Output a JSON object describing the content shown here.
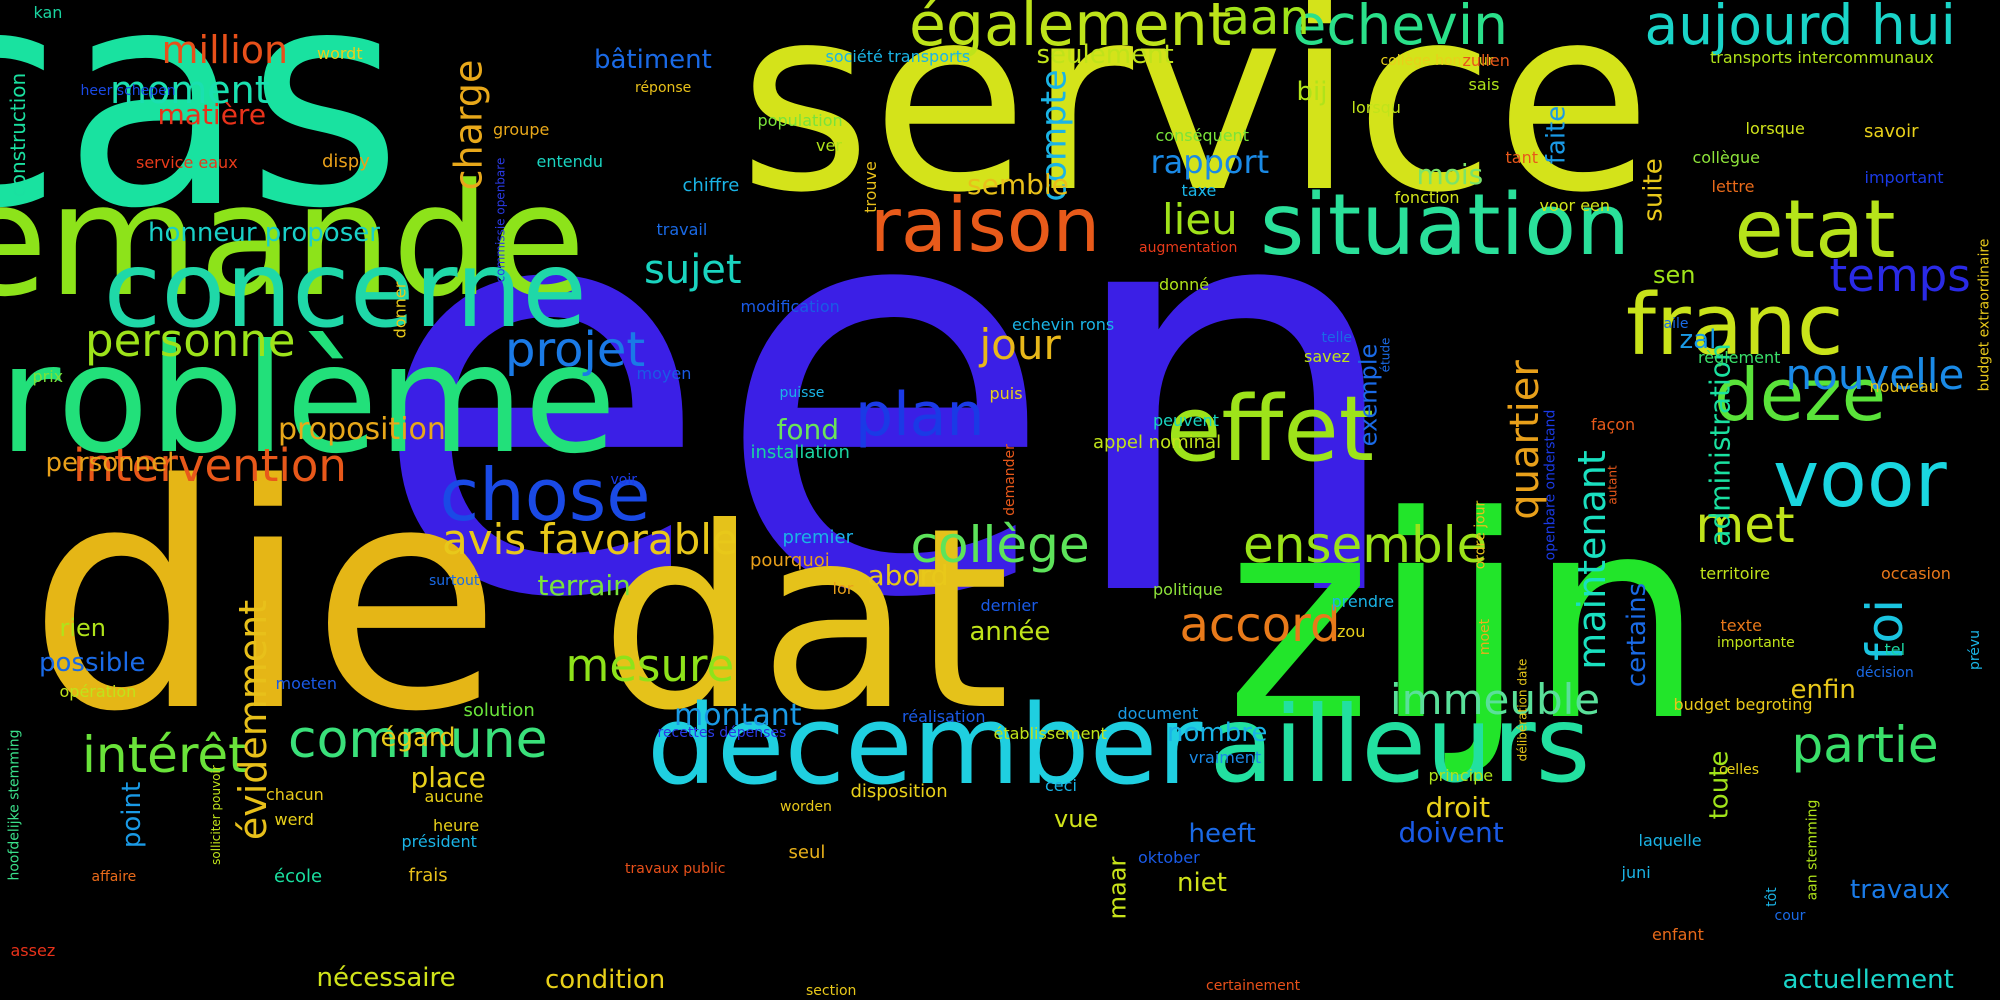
{
  "words": [
    {
      "text": "een",
      "color": "#3b1fe6"
    },
    {
      "text": "cas",
      "color": "#19e2a0"
    },
    {
      "text": "service",
      "color": "#d4e31a"
    },
    {
      "text": "die",
      "color": "#e5b616"
    },
    {
      "text": "dat",
      "color": "#e5c21a"
    },
    {
      "text": "zijn",
      "color": "#22e52a"
    },
    {
      "text": "demande",
      "color": "#8de31a"
    },
    {
      "text": "problème",
      "color": "#22e07a"
    },
    {
      "text": "concerne",
      "color": "#1fd8a8"
    },
    {
      "text": "december",
      "color": "#1fcfe0"
    },
    {
      "text": "ailleurs",
      "color": "#22e0a0"
    },
    {
      "text": "situation",
      "color": "#2ae09a"
    },
    {
      "text": "effet",
      "color": "#9ee31a"
    },
    {
      "text": "raison",
      "color": "#e85a1a"
    },
    {
      "text": "franc",
      "color": "#c9e31a"
    },
    {
      "text": "etat",
      "color": "#b6e31a"
    },
    {
      "text": "voor",
      "color": "#1ad6e0"
    },
    {
      "text": "deze",
      "color": "#5ae33a"
    },
    {
      "text": "chose",
      "color": "#1a4ae6"
    },
    {
      "text": "également",
      "color": "#bde31a"
    },
    {
      "text": "echevin",
      "color": "#2ae08a"
    },
    {
      "text": "aujourd hui",
      "color": "#1ad4c8"
    },
    {
      "text": "aan",
      "color": "#a0e31a"
    },
    {
      "text": "million",
      "color": "#e8501a"
    },
    {
      "text": "moment",
      "color": "#1ae0b0"
    },
    {
      "text": "matière",
      "color": "#e8321a"
    },
    {
      "text": "intervention",
      "color": "#e8581a"
    },
    {
      "text": "personne",
      "color": "#9de31a"
    },
    {
      "text": "projet",
      "color": "#1a7ae6"
    },
    {
      "text": "plan",
      "color": "#1a3ae6"
    },
    {
      "text": "collège",
      "color": "#5de35a"
    },
    {
      "text": "ensemble",
      "color": "#9be31a"
    },
    {
      "text": "temps",
      "color": "#2a2ae6"
    },
    {
      "text": "nouvelle",
      "color": "#1a8ae6"
    },
    {
      "text": "partie",
      "color": "#3ae06a"
    },
    {
      "text": "commune",
      "color": "#3ae07a"
    },
    {
      "text": "intérêt",
      "color": "#6ae33a"
    },
    {
      "text": "avis favorable",
      "color": "#e8c81a"
    },
    {
      "text": "mesure",
      "color": "#8ee31a"
    },
    {
      "text": "immeuble",
      "color": "#5ae09a"
    },
    {
      "text": "accord",
      "color": "#e87a1a"
    },
    {
      "text": "met",
      "color": "#c0e31a"
    },
    {
      "text": "foi",
      "color": "#1ac4e0"
    },
    {
      "text": "maintenant",
      "color": "#1ae0c0"
    },
    {
      "text": "quartier",
      "color": "#e8a01a"
    },
    {
      "text": "compte",
      "color": "#1ab4e6"
    },
    {
      "text": "charge",
      "color": "#e8a81a"
    },
    {
      "text": "sujet",
      "color": "#1ad4c0"
    },
    {
      "text": "jour",
      "color": "#e8b81a"
    },
    {
      "text": "lieu",
      "color": "#a0e31a"
    },
    {
      "text": "rapport",
      "color": "#1a8ae6"
    },
    {
      "text": "bâtiment",
      "color": "#1a6ae6"
    },
    {
      "text": "seulement",
      "color": "#c0e31a"
    },
    {
      "text": "honneur proposer",
      "color": "#1ad0c8"
    },
    {
      "text": "proposition",
      "color": "#e8a81a"
    },
    {
      "text": "personnel",
      "color": "#e8a01a"
    },
    {
      "text": "rien",
      "color": "#b0e31a"
    },
    {
      "text": "possible",
      "color": "#1a6ae6"
    },
    {
      "text": "évidemment",
      "color": "#e8c01a"
    },
    {
      "text": "montant",
      "color": "#1a9ae6"
    },
    {
      "text": "terrain",
      "color": "#7ae33a"
    },
    {
      "text": "abord",
      "color": "#e8c81a"
    },
    {
      "text": "fond",
      "color": "#6ae35a"
    },
    {
      "text": "année",
      "color": "#c0e31a"
    },
    {
      "text": "semble",
      "color": "#e8c01a"
    },
    {
      "text": "mois",
      "color": "#7ae36a"
    },
    {
      "text": "bij",
      "color": "#b0e31a"
    },
    {
      "text": "sen",
      "color": "#a0e31a"
    },
    {
      "text": "zal",
      "color": "#1a9ae6"
    },
    {
      "text": "administration",
      "color": "#1ae0a0"
    },
    {
      "text": "faite",
      "color": "#1a9ae6"
    },
    {
      "text": "suite",
      "color": "#e8c81a"
    },
    {
      "text": "exemple",
      "color": "#1a6ae6"
    },
    {
      "text": "certains",
      "color": "#1a6ae6"
    },
    {
      "text": "toute",
      "color": "#a0e31a"
    },
    {
      "text": "enfin",
      "color": "#e8c81a"
    },
    {
      "text": "travaux",
      "color": "#1a7ae6"
    },
    {
      "text": "actuellement",
      "color": "#1ad4c8"
    },
    {
      "text": "condition",
      "color": "#e8d01a"
    },
    {
      "text": "nécessaire",
      "color": "#d0e31a"
    },
    {
      "text": "nombre",
      "color": "#1ab4e6"
    },
    {
      "text": "droit",
      "color": "#e8d01a"
    },
    {
      "text": "doivent",
      "color": "#1a5ae6"
    },
    {
      "text": "heeft",
      "color": "#1a6ae6"
    },
    {
      "text": "niet",
      "color": "#d0e31a"
    },
    {
      "text": "vue",
      "color": "#d0e31a"
    },
    {
      "text": "maar",
      "color": "#c8e31a"
    },
    {
      "text": "place",
      "color": "#e8d01a"
    },
    {
      "text": "égard",
      "color": "#e8c81a"
    },
    {
      "text": "point",
      "color": "#1a9ae6"
    },
    {
      "text": "construction",
      "color": "#1ae0a0"
    },
    {
      "text": "kan",
      "color": "#1ad4a0"
    },
    {
      "text": "wordt",
      "color": "#e8d01a"
    },
    {
      "text": "heer schepen",
      "color": "#1a4ae6"
    },
    {
      "text": "service eaux",
      "color": "#e83a1a"
    },
    {
      "text": "dispy",
      "color": "#e8a01a"
    },
    {
      "text": "groupe",
      "color": "#e8a81a"
    },
    {
      "text": "entendu",
      "color": "#1ad4c0"
    },
    {
      "text": "réponse",
      "color": "#e8c01a"
    },
    {
      "text": "chiffre",
      "color": "#1ab4e6"
    },
    {
      "text": "population",
      "color": "#7ae33a"
    },
    {
      "text": "ver",
      "color": "#b0e31a"
    },
    {
      "text": "travail",
      "color": "#1a6ae6"
    },
    {
      "text": "trouve",
      "color": "#e8c01a"
    },
    {
      "text": "société transports",
      "color": "#1ab4e6"
    },
    {
      "text": "commissie openbare",
      "color": "#2a3ae6"
    },
    {
      "text": "donner",
      "color": "#e8c81a"
    },
    {
      "text": "prix",
      "color": "#7ae33a"
    },
    {
      "text": "moyen",
      "color": "#1a5ae6"
    },
    {
      "text": "modification",
      "color": "#1a5ae6"
    },
    {
      "text": "echevin rons",
      "color": "#1ab4e6"
    },
    {
      "text": "puisse",
      "color": "#1ab4e6"
    },
    {
      "text": "puis",
      "color": "#e8d01a"
    },
    {
      "text": "installation",
      "color": "#1ad4a0"
    },
    {
      "text": "voir",
      "color": "#1a3ae6"
    },
    {
      "text": "surtout",
      "color": "#1a6ae6"
    },
    {
      "text": "premier",
      "color": "#1ab4e6"
    },
    {
      "text": "pourquoi",
      "color": "#e8a01a"
    },
    {
      "text": "lor",
      "color": "#e8a01a"
    },
    {
      "text": "demander",
      "color": "#e8581a"
    },
    {
      "text": "dernier",
      "color": "#1a5ae6"
    },
    {
      "text": "solution",
      "color": "#6ae33a"
    },
    {
      "text": "moeten",
      "color": "#1a5ae6"
    },
    {
      "text": "opération",
      "color": "#c0e31a"
    },
    {
      "text": "hoofdelijke stemming",
      "color": "#3ae08a"
    },
    {
      "text": "recettes dépenses",
      "color": "#2a3ae6"
    },
    {
      "text": "réalisation",
      "color": "#1a5ae6"
    },
    {
      "text": "établissement",
      "color": "#c0e31a"
    },
    {
      "text": "solliciter pouvoir",
      "color": "#c0e31a"
    },
    {
      "text": "chacun",
      "color": "#e8c81a"
    },
    {
      "text": "aucune",
      "color": "#e8d01a"
    },
    {
      "text": "werd",
      "color": "#e8d01a"
    },
    {
      "text": "heure",
      "color": "#e8d01a"
    },
    {
      "text": "président",
      "color": "#1ab4e6"
    },
    {
      "text": "école",
      "color": "#1ae0a0"
    },
    {
      "text": "frais",
      "color": "#e8c01a"
    },
    {
      "text": "affaire",
      "color": "#e86a1a"
    },
    {
      "text": "assez",
      "color": "#e8321a"
    },
    {
      "text": "section",
      "color": "#e8c81a"
    },
    {
      "text": "seul",
      "color": "#e8b01a"
    },
    {
      "text": "travaux public",
      "color": "#e8501a"
    },
    {
      "text": "worden",
      "color": "#e8c81a"
    },
    {
      "text": "disposition",
      "color": "#e8d01a"
    },
    {
      "text": "ceci",
      "color": "#1ab4e6"
    },
    {
      "text": "document",
      "color": "#1a9ae6"
    },
    {
      "text": "vraiment",
      "color": "#1a8ae6"
    },
    {
      "text": "oktober",
      "color": "#1a5ae6"
    },
    {
      "text": "certainement",
      "color": "#e8501a"
    },
    {
      "text": "principe",
      "color": "#b0e31a"
    },
    {
      "text": "zou",
      "color": "#e8d01a"
    },
    {
      "text": "prendre",
      "color": "#1ab4e6"
    },
    {
      "text": "politique",
      "color": "#8ee33a"
    },
    {
      "text": "appel nominal",
      "color": "#c0e31a"
    },
    {
      "text": "peuvent",
      "color": "#1ad4c0"
    },
    {
      "text": "donné",
      "color": "#b0e31a"
    },
    {
      "text": "augmentation",
      "color": "#e83a1a"
    },
    {
      "text": "taxe",
      "color": "#1ab4e6"
    },
    {
      "text": "conséquent",
      "color": "#7ae33a"
    },
    {
      "text": "lorsqu",
      "color": "#c0e31a"
    },
    {
      "text": "fonction",
      "color": "#d0e31a"
    },
    {
      "text": "collège honneur",
      "color": "#e8d01a"
    },
    {
      "text": "zullen",
      "color": "#e8581a"
    },
    {
      "text": "sais",
      "color": "#b0e31a"
    },
    {
      "text": "lorsque",
      "color": "#d0e31a"
    },
    {
      "text": "tant",
      "color": "#e8581a"
    },
    {
      "text": "collègue",
      "color": "#8ee33a"
    },
    {
      "text": "lettre",
      "color": "#e86a1a"
    },
    {
      "text": "voor een",
      "color": "#d0e31a"
    },
    {
      "text": "telle",
      "color": "#1a6ae6"
    },
    {
      "text": "savez",
      "color": "#c0e31a"
    },
    {
      "text": "étude",
      "color": "#1a6ae6"
    },
    {
      "text": "openbare onderstand",
      "color": "#1a3ae6"
    },
    {
      "text": "façon",
      "color": "#e85a1a"
    },
    {
      "text": "autant",
      "color": "#e8581a"
    },
    {
      "text": "ordre jour",
      "color": "#e8c01a"
    },
    {
      "text": "moet",
      "color": "#e8b01a"
    },
    {
      "text": "délibération date",
      "color": "#e8c81a"
    },
    {
      "text": "texte",
      "color": "#e8781a"
    },
    {
      "text": "importante",
      "color": "#c0e31a"
    },
    {
      "text": "budget begroting",
      "color": "#e8c81a"
    },
    {
      "text": "celles",
      "color": "#e8d01a"
    },
    {
      "text": "laquelle",
      "color": "#1ab4e6"
    },
    {
      "text": "juni",
      "color": "#1ab4e6"
    },
    {
      "text": "tôt",
      "color": "#1ab4e6"
    },
    {
      "text": "enfant",
      "color": "#e86a1a"
    },
    {
      "text": "cour",
      "color": "#1a6ae6"
    },
    {
      "text": "aan stemming",
      "color": "#b0e31a"
    },
    {
      "text": "transports intercommunaux",
      "color": "#b0e31a"
    },
    {
      "text": "savoir",
      "color": "#e8d01a"
    },
    {
      "text": "important",
      "color": "#1a3ae6"
    },
    {
      "text": "budget extraordinaire",
      "color": "#e8c81a"
    },
    {
      "text": "aile",
      "color": "#1a6ae6"
    },
    {
      "text": "règlement",
      "color": "#3ae06a"
    },
    {
      "text": "nouveau",
      "color": "#e8c01a"
    },
    {
      "text": "territoire",
      "color": "#c0e31a"
    },
    {
      "text": "occasion",
      "color": "#e8781a"
    },
    {
      "text": "décision",
      "color": "#1a6ae6"
    },
    {
      "text": "tel",
      "color": "#1ad4a0"
    },
    {
      "text": "prévu",
      "color": "#1ab4e6"
    }
  ]
}
